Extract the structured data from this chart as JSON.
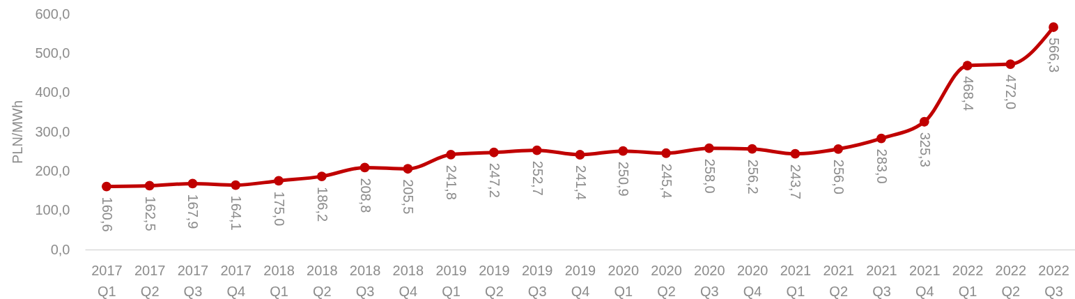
{
  "chart_data": {
    "type": "line",
    "ylabel": "PLN/MWh",
    "categories": [
      "2017 Q1",
      "2017 Q2",
      "2017 Q3",
      "2017 Q4",
      "2018 Q1",
      "2018 Q2",
      "2018 Q3",
      "2018 Q4",
      "2019 Q1",
      "2019 Q2",
      "2019 Q3",
      "2019 Q4",
      "2020 Q1",
      "2020 Q2",
      "2020 Q3",
      "2020 Q4",
      "2021 Q1",
      "2021 Q2",
      "2021 Q3",
      "2021 Q4",
      "2022 Q1",
      "2022 Q2",
      "2022 Q3"
    ],
    "series": [
      {
        "color": "#c00000",
        "values": [
          160.6,
          162.5,
          167.9,
          164.1,
          175.0,
          186.2,
          208.8,
          205.5,
          241.8,
          247.2,
          252.7,
          241.4,
          250.9,
          245.4,
          258.0,
          256.2,
          243.7,
          256.0,
          283.0,
          325.3,
          468.4,
          472.0,
          566.3
        ],
        "value_labels": [
          "160,6",
          "162,5",
          "167,9",
          "164,1",
          "175,0",
          "186,2",
          "208,8",
          "205,5",
          "241,8",
          "247,2",
          "252,7",
          "241,4",
          "250,9",
          "245,4",
          "258,0",
          "256,2",
          "243,7",
          "256,0",
          "283,0",
          "325,3",
          "468,4",
          "472,0",
          "566,3"
        ]
      }
    ],
    "ylim": [
      0,
      600
    ],
    "yticks": [
      {
        "value": 0,
        "label": "0,0"
      },
      {
        "value": 100,
        "label": "100,0"
      },
      {
        "value": 200,
        "label": "200,0"
      },
      {
        "value": 300,
        "label": "300,0"
      },
      {
        "value": 400,
        "label": "400,0"
      },
      {
        "value": 500,
        "label": "500,0"
      },
      {
        "value": 600,
        "label": "600,0"
      }
    ],
    "grid": false,
    "marker": "circle",
    "line_style": "solid"
  }
}
